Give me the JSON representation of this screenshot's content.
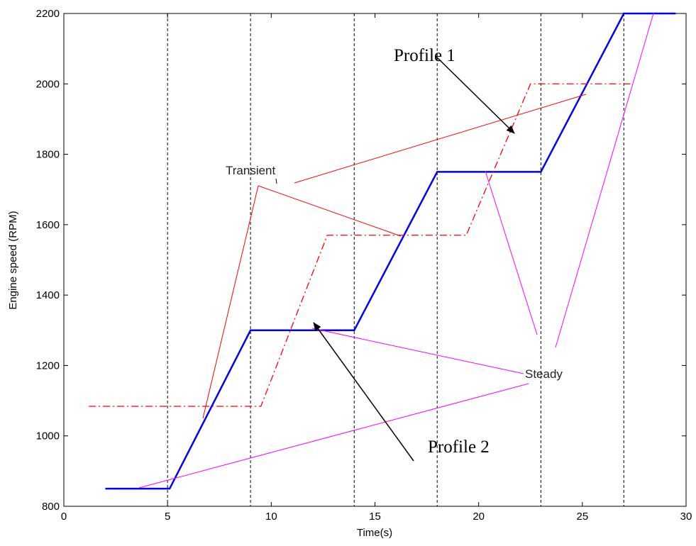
{
  "chart_data": {
    "type": "line",
    "xlabel": "Time(s)",
    "ylabel": "Engine speed (RPM)",
    "xlim": [
      0,
      30
    ],
    "ylim": [
      800,
      2200
    ],
    "xticks": [
      0,
      5,
      10,
      15,
      20,
      25,
      30
    ],
    "yticks": [
      800,
      1000,
      1200,
      1400,
      1600,
      1800,
      2000,
      2200
    ],
    "vlines": [
      5,
      9,
      14,
      18,
      23,
      27
    ],
    "series": [
      {
        "color": "#0000ff",
        "style": "solid",
        "x": [
          2,
          5.1,
          9,
          14,
          18,
          23,
          27,
          29.5
        ],
        "values": [
          850,
          850,
          1300,
          1300,
          1750,
          1750,
          2200,
          2200
        ]
      },
      {
        "color": "#ff0000",
        "style": "dashdot",
        "x": [
          1.2,
          9.5,
          12.7,
          19.4,
          22.5,
          27.4
        ],
        "values": [
          1084,
          1084,
          1570,
          1570,
          2000,
          2000
        ]
      }
    ],
    "annotations": [
      "Profile 1",
      "Profile 2",
      "Transient",
      "Steady"
    ]
  }
}
